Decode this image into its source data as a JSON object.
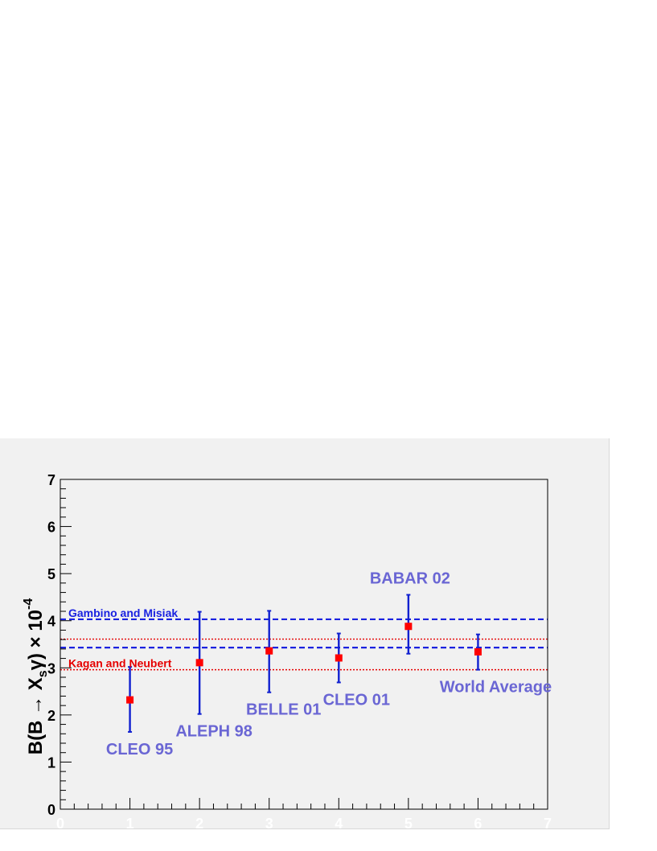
{
  "chart_data": {
    "type": "scatter",
    "ylabel": {
      "prefix": "B(B → X",
      "sub": "s",
      "gamma_close": "γ) × 10",
      "sup": "-4"
    },
    "xlim": [
      0,
      7
    ],
    "ylim": [
      0,
      7
    ],
    "x_ticks": [
      "0",
      "1",
      "2",
      "3",
      "4",
      "5",
      "6",
      "7"
    ],
    "y_ticks": [
      "0",
      "1",
      "2",
      "3",
      "4",
      "5",
      "6",
      "7"
    ],
    "points": [
      {
        "label": "CLEO 95",
        "x": 1,
        "y": 2.32,
        "err_low": 1.64,
        "err_high": 3.02
      },
      {
        "label": "ALEPH 98",
        "x": 2,
        "y": 3.11,
        "err_low": 2.02,
        "err_high": 4.19
      },
      {
        "label": "BELLE 01",
        "x": 3,
        "y": 3.36,
        "err_low": 2.48,
        "err_high": 4.21
      },
      {
        "label": "CLEO 01",
        "x": 4,
        "y": 3.21,
        "err_low": 2.69,
        "err_high": 3.73
      },
      {
        "label": "BABAR 02",
        "x": 5,
        "y": 3.88,
        "err_low": 3.3,
        "err_high": 4.55
      },
      {
        "label": "World Average",
        "x": 6,
        "y": 3.34,
        "err_low": 2.96,
        "err_high": 3.71
      }
    ],
    "bands": [
      {
        "label": "Gambino and Misiak",
        "low": 3.43,
        "high": 4.03,
        "style": "dashed",
        "color": "#1a22e0"
      },
      {
        "label": "Kagan and Neubert",
        "low": 2.96,
        "high": 3.61,
        "style": "dotted",
        "color": "#e60000"
      }
    ],
    "colors": {
      "marker": "#ff0000",
      "error_bar": "#1020d0",
      "point_label": "#6a66d4"
    },
    "grid": false
  }
}
